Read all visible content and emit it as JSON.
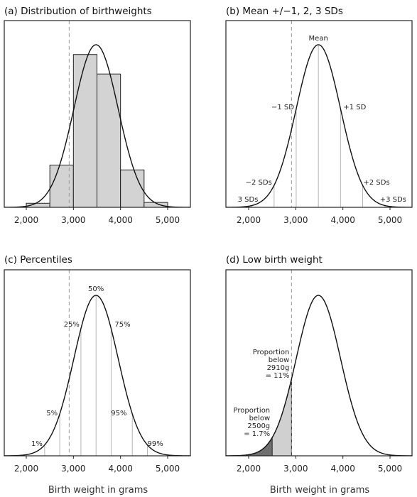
{
  "x_axis_label": "Birth weight in grams",
  "panels": [
    {
      "title": "(a) Distribution of birthweights"
    },
    {
      "title": "(b) Mean +/−1, 2, 3 SDs"
    },
    {
      "title": "(c) Percentiles"
    },
    {
      "title": "(d) Low birth weight"
    }
  ],
  "chart_data": [
    {
      "type": "bar",
      "title": "(a) Distribution of birthweights",
      "xlabel": "",
      "ylabel": "",
      "xlim": [
        1500,
        5400
      ],
      "xticks": [
        2000,
        3000,
        4000,
        5000
      ],
      "xtick_labels": [
        "2,000",
        "3,000",
        "4,000",
        "5,000"
      ],
      "bins": [
        {
          "start": 1500,
          "end": 2000,
          "value": 0.0
        },
        {
          "start": 2000,
          "end": 2500,
          "value": 0.025
        },
        {
          "start": 2500,
          "end": 3000,
          "value": 0.26
        },
        {
          "start": 3000,
          "end": 3500,
          "value": 0.94
        },
        {
          "start": 3500,
          "end": 4000,
          "value": 0.82
        },
        {
          "start": 4000,
          "end": 4500,
          "value": 0.23
        },
        {
          "start": 4500,
          "end": 5000,
          "value": 0.03
        }
      ],
      "normal_curve": {
        "mean": 3480,
        "sd": 470
      },
      "reference_line": 2910
    },
    {
      "type": "line",
      "title": "(b) Mean +/−1, 2, 3 SDs",
      "xlim": [
        1500,
        5400
      ],
      "xticks": [
        2000,
        3000,
        4000,
        5000
      ],
      "xtick_labels": [
        "2,000",
        "3,000",
        "4,000",
        "5,000"
      ],
      "normal_curve": {
        "mean": 3480,
        "sd": 470
      },
      "reference_line": 2910,
      "markers": [
        {
          "label": "Mean",
          "x": 3480
        },
        {
          "label": "−1 SD",
          "x": 3010
        },
        {
          "label": "+1 SD",
          "x": 3950
        },
        {
          "label": "−2 SDs",
          "x": 2540
        },
        {
          "label": "+2 SDs",
          "x": 4420
        },
        {
          "label": "3 SDs",
          "x": 2070
        },
        {
          "label": "+3 SDs",
          "x": 4890
        }
      ]
    },
    {
      "type": "line",
      "title": "(c) Percentiles",
      "xlim": [
        1500,
        5400
      ],
      "xticks": [
        2000,
        3000,
        4000,
        5000
      ],
      "xtick_labels": [
        "2,000",
        "3,000",
        "4,000",
        "5,000"
      ],
      "xlabel": "Birth weight in grams",
      "normal_curve": {
        "mean": 3480,
        "sd": 470
      },
      "reference_line": 2910,
      "markers": [
        {
          "label": "1%",
          "x": 2390
        },
        {
          "label": "5%",
          "x": 2710
        },
        {
          "label": "25%",
          "x": 3160
        },
        {
          "label": "50%",
          "x": 3480
        },
        {
          "label": "75%",
          "x": 3800
        },
        {
          "label": "95%",
          "x": 4250
        },
        {
          "label": "99%",
          "x": 4570
        }
      ]
    },
    {
      "type": "area",
      "title": "(d) Low birth weight",
      "xlim": [
        1500,
        5400
      ],
      "xticks": [
        2000,
        3000,
        4000,
        5000
      ],
      "xtick_labels": [
        "2,000",
        "3,000",
        "4,000",
        "5,000"
      ],
      "xlabel": "Birth weight in grams",
      "normal_curve": {
        "mean": 3480,
        "sd": 470
      },
      "reference_line": 2910,
      "shaded_regions": [
        {
          "upper": 2910,
          "color": "#d0d0d0",
          "label_lines": [
            "Proportion",
            "below",
            "2910g",
            "= 11%"
          ]
        },
        {
          "upper": 2500,
          "color": "#6f6f6f",
          "label_lines": [
            "Proportion",
            "below",
            "2500g",
            "= 1.7%"
          ]
        }
      ]
    }
  ]
}
